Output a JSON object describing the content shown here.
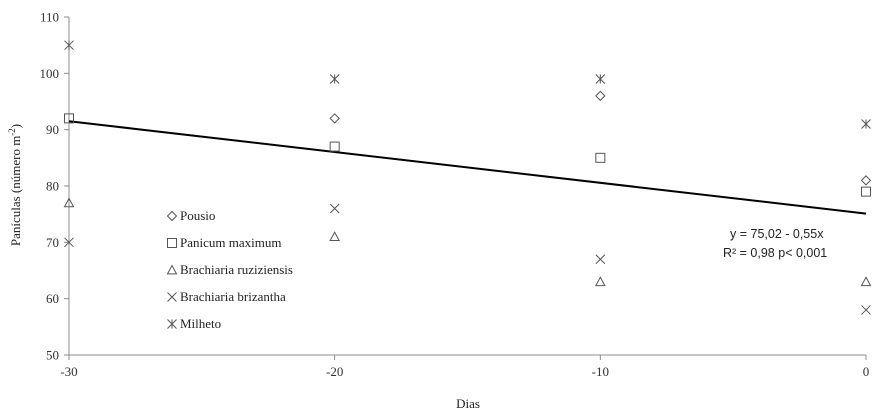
{
  "chart_data": {
    "type": "scatter",
    "xlabel": "Dias",
    "ylabel": "Panículas (número  m",
    "ylabel_sup": "-2",
    "ylabel_close": ")",
    "xlim": [
      -30,
      0
    ],
    "ylim": [
      50,
      110
    ],
    "x_ticks": [
      -30,
      -20,
      -10,
      0
    ],
    "y_ticks": [
      50,
      60,
      70,
      80,
      90,
      100,
      110
    ],
    "legend_position": "left",
    "series": [
      {
        "name": "Pousio",
        "marker": "diamond",
        "x": [
          -20,
          -10,
          0
        ],
        "y": [
          92,
          96,
          81
        ]
      },
      {
        "name": "Panicum maximum",
        "marker": "square",
        "x": [
          -30,
          -20,
          -10,
          0
        ],
        "y": [
          92,
          87,
          85,
          79
        ]
      },
      {
        "name": "Brachiaria ruziziensis",
        "marker": "triangle",
        "x": [
          -30,
          -20,
          -10,
          0
        ],
        "y": [
          77,
          71,
          63,
          63
        ]
      },
      {
        "name": "Brachiaria brizantha",
        "marker": "x",
        "x": [
          -30,
          -20,
          -10,
          0
        ],
        "y": [
          70,
          76,
          67,
          58
        ]
      },
      {
        "name": "Milheto",
        "marker": "asterisk",
        "x": [
          -30,
          -20,
          -10,
          0
        ],
        "y": [
          105,
          99,
          99,
          91
        ]
      }
    ],
    "trendline": {
      "intercept": 75.02,
      "slope": -0.55,
      "color": "#000000"
    },
    "annotations": {
      "equation": "y = 75,02 - 0,55x",
      "r2": "R² = 0,98 p< 0,001"
    }
  }
}
